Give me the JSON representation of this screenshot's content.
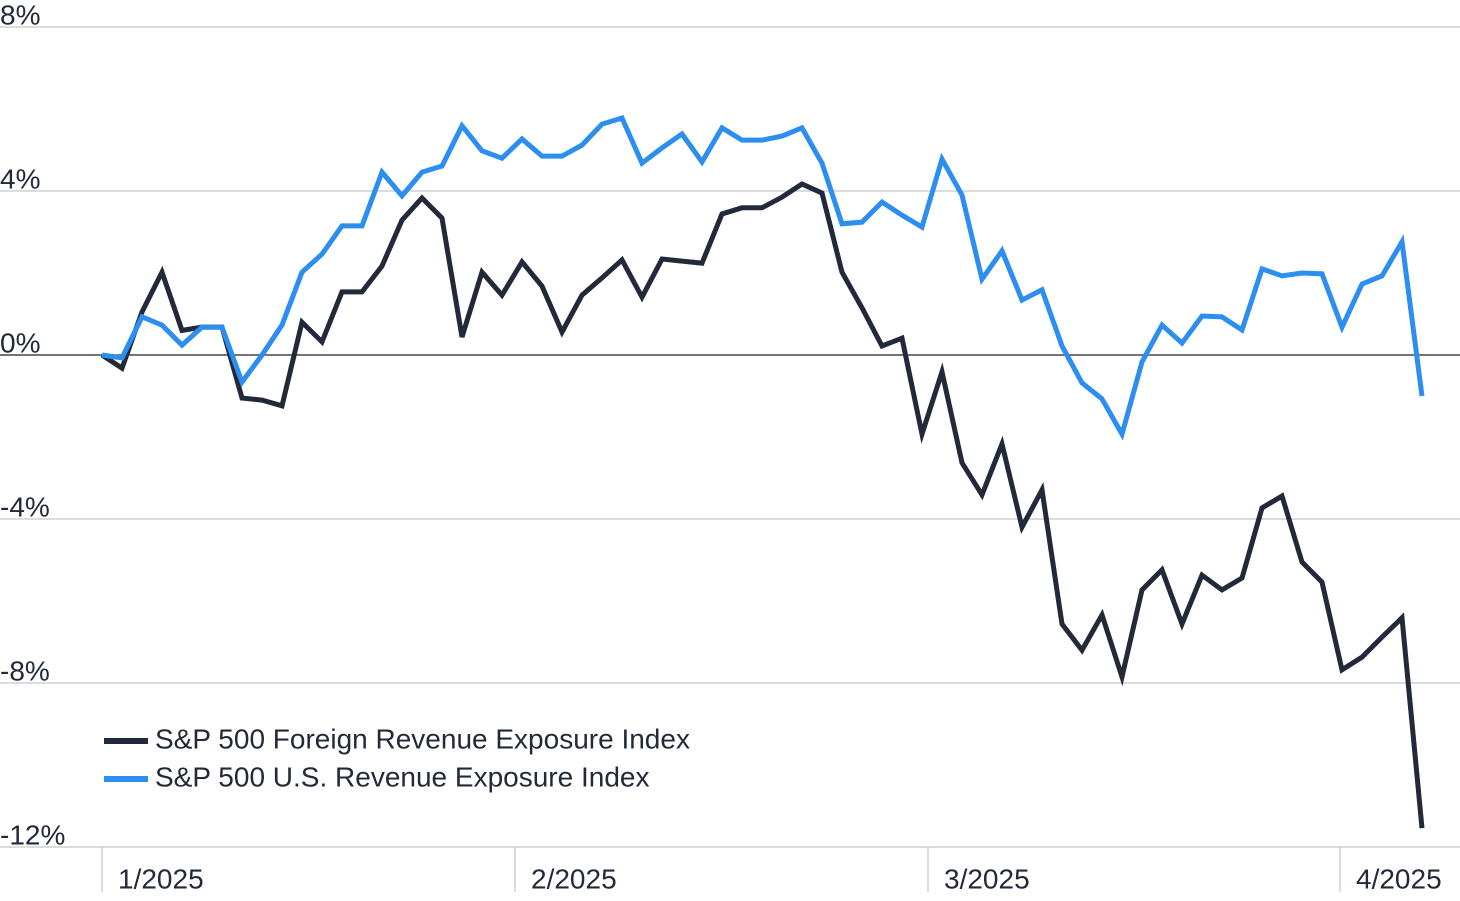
{
  "chart_data": {
    "type": "line",
    "xlim": [
      0,
      66
    ],
    "xticks": [
      {
        "value": 0,
        "label": "1/2025"
      },
      {
        "value": 20.65,
        "label": "2/2025"
      },
      {
        "value": 41.3,
        "label": "3/2025"
      },
      {
        "value": 61.9,
        "label": "4/2025"
      }
    ],
    "ylim": [
      -12,
      8
    ],
    "yticks": [
      {
        "value": 8,
        "label": "8%"
      },
      {
        "value": 4,
        "label": "4%"
      },
      {
        "value": 0,
        "label": "0%"
      },
      {
        "value": -4,
        "label": "-4%"
      },
      {
        "value": -8,
        "label": "-8%"
      },
      {
        "value": -12,
        "label": "-12%"
      }
    ],
    "grid": true,
    "legend": "lower-left",
    "series": [
      {
        "name": "S&P 500 Foreign Revenue Exposure Index",
        "color": "#222a3a",
        "values": [
          0,
          -0.32,
          1.05,
          2.02,
          0.6,
          0.68,
          0.68,
          -1.05,
          -1.1,
          -1.24,
          0.8,
          0.32,
          1.54,
          1.54,
          2.17,
          3.29,
          3.83,
          3.34,
          0.44,
          2.02,
          1.46,
          2.27,
          1.68,
          0.56,
          1.46,
          1.88,
          2.32,
          1.41,
          2.34,
          2.29,
          2.24,
          3.44,
          3.59,
          3.59,
          3.85,
          4.17,
          3.95,
          2.02,
          1.15,
          0.22,
          0.41,
          -1.93,
          -0.41,
          -2.63,
          -3.41,
          -2.17,
          -4.2,
          -3.29,
          -6.56,
          -7.2,
          -6.34,
          -7.85,
          -5.73,
          -5.24,
          -6.56,
          -5.37,
          -5.73,
          -5.44,
          -3.73,
          -3.44,
          -5.05,
          -5.54,
          -7.68,
          -7.37,
          -6.88,
          -6.41,
          -11.54
        ]
      },
      {
        "name": "S&P 500 U.S. Revenue Exposure Index",
        "color": "#2b8ef0",
        "values": [
          0,
          -0.07,
          0.93,
          0.73,
          0.24,
          0.68,
          0.68,
          -0.66,
          0,
          0.73,
          2.02,
          2.46,
          3.15,
          3.15,
          4.46,
          3.88,
          4.46,
          4.61,
          5.59,
          4.98,
          4.8,
          5.27,
          4.85,
          4.85,
          5.12,
          5.63,
          5.78,
          4.68,
          5.05,
          5.39,
          4.71,
          5.54,
          5.24,
          5.24,
          5.34,
          5.54,
          4.68,
          3.2,
          3.24,
          3.73,
          3.41,
          3.12,
          4.78,
          3.9,
          1.85,
          2.54,
          1.34,
          1.59,
          0.22,
          -0.68,
          -1.07,
          -1.93,
          -0.17,
          0.73,
          0.29,
          0.95,
          0.93,
          0.61,
          2.1,
          1.93,
          2.0,
          1.98,
          0.68,
          1.73,
          1.93,
          2.76,
          -1.0
        ]
      }
    ]
  }
}
